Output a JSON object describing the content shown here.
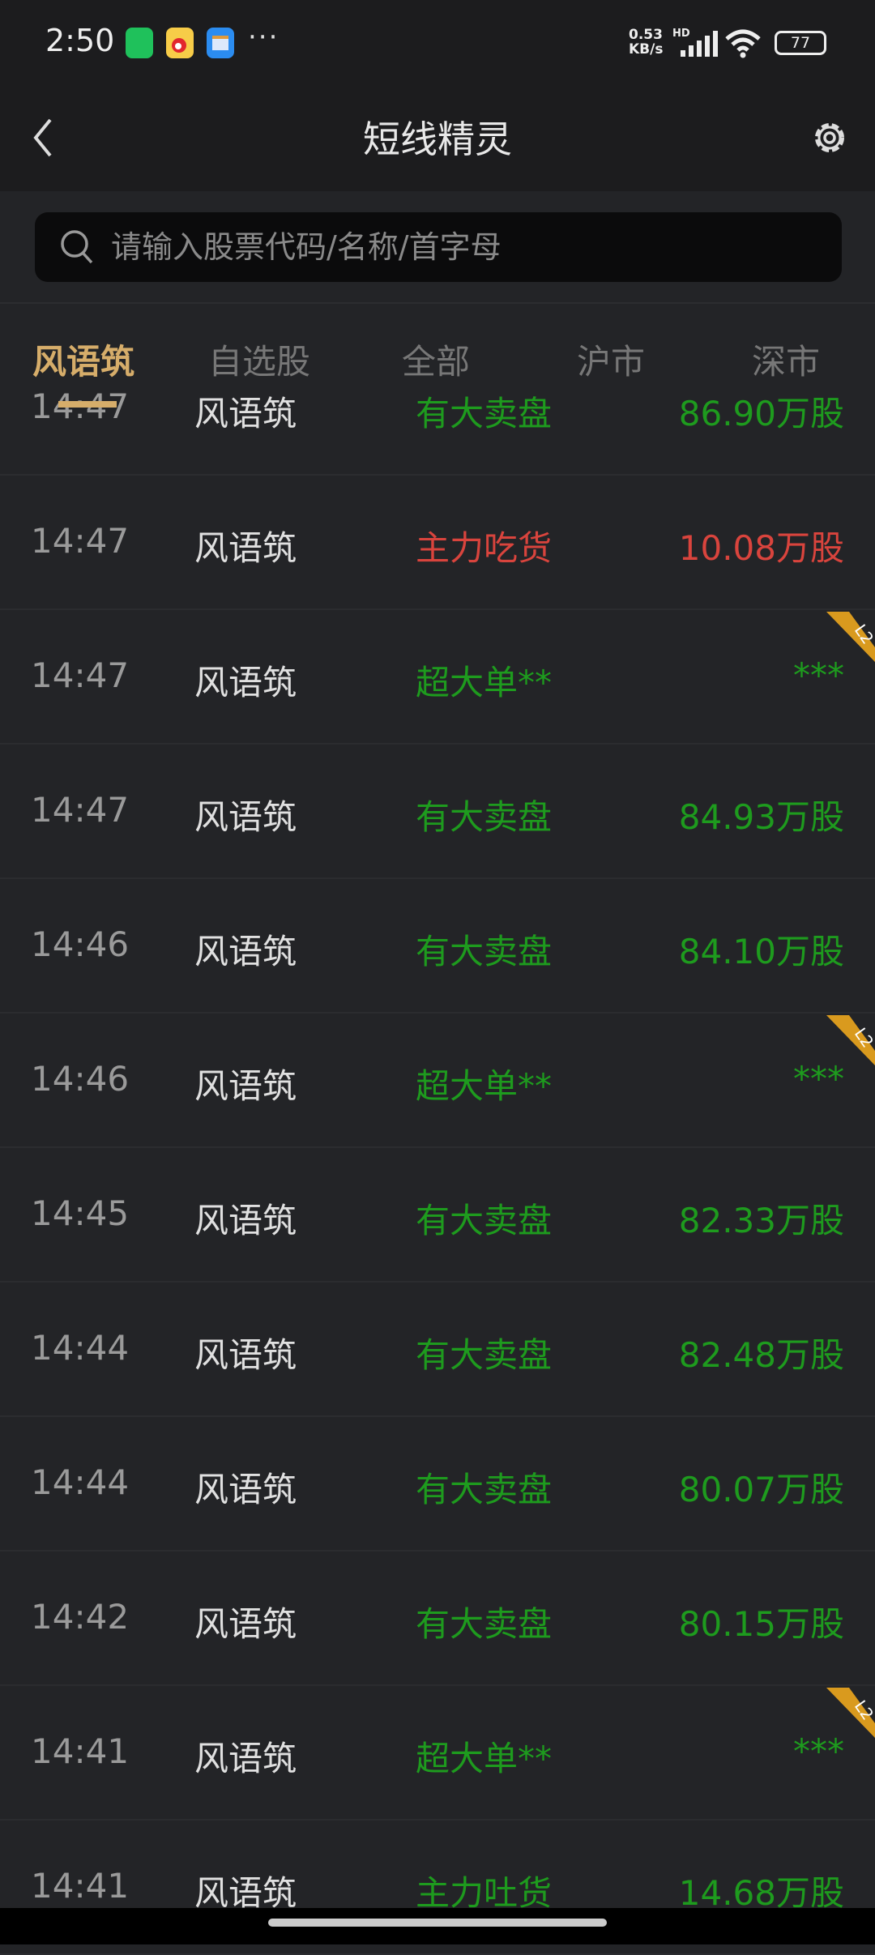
{
  "status_bar": {
    "time": "2:50",
    "net_speed": "0.53",
    "net_unit": "KB/s",
    "network": "HD",
    "battery": "77",
    "notification_icons": [
      "wechat-icon",
      "weibo-icon",
      "wallet-icon"
    ],
    "more": "···"
  },
  "header": {
    "title": "短线精灵"
  },
  "search": {
    "placeholder": "请输入股票代码/名称/首字母"
  },
  "tabs": [
    {
      "label": "风语筑",
      "active": true
    },
    {
      "label": "自选股"
    },
    {
      "label": "全部"
    },
    {
      "label": "沪市"
    },
    {
      "label": "深市"
    }
  ],
  "colors": {
    "green": "#1e9b1e",
    "red": "#d9443d",
    "accent": "#d6ad6a",
    "badge": "#d99a1e"
  },
  "rows": [
    {
      "time": "14:47",
      "name": "风语筑",
      "type": "有大卖盘",
      "value": "86.90万股",
      "color": "green"
    },
    {
      "time": "14:47",
      "name": "风语筑",
      "type": "主力吃货",
      "value": "10.08万股",
      "color": "red"
    },
    {
      "time": "14:47",
      "name": "风语筑",
      "type": "超大单**",
      "value": "***",
      "color": "green",
      "badge": "L2"
    },
    {
      "time": "14:47",
      "name": "风语筑",
      "type": "有大卖盘",
      "value": "84.93万股",
      "color": "green"
    },
    {
      "time": "14:46",
      "name": "风语筑",
      "type": "有大卖盘",
      "value": "84.10万股",
      "color": "green"
    },
    {
      "time": "14:46",
      "name": "风语筑",
      "type": "超大单**",
      "value": "***",
      "color": "green",
      "badge": "L2"
    },
    {
      "time": "14:45",
      "name": "风语筑",
      "type": "有大卖盘",
      "value": "82.33万股",
      "color": "green"
    },
    {
      "time": "14:44",
      "name": "风语筑",
      "type": "有大卖盘",
      "value": "82.48万股",
      "color": "green"
    },
    {
      "time": "14:44",
      "name": "风语筑",
      "type": "有大卖盘",
      "value": "80.07万股",
      "color": "green"
    },
    {
      "time": "14:42",
      "name": "风语筑",
      "type": "有大卖盘",
      "value": "80.15万股",
      "color": "green"
    },
    {
      "time": "14:41",
      "name": "风语筑",
      "type": "超大单**",
      "value": "***",
      "color": "green",
      "badge": "L2"
    },
    {
      "time": "14:41",
      "name": "风语筑",
      "type": "主力吐货",
      "value": "14.68万股",
      "color": "green"
    }
  ]
}
